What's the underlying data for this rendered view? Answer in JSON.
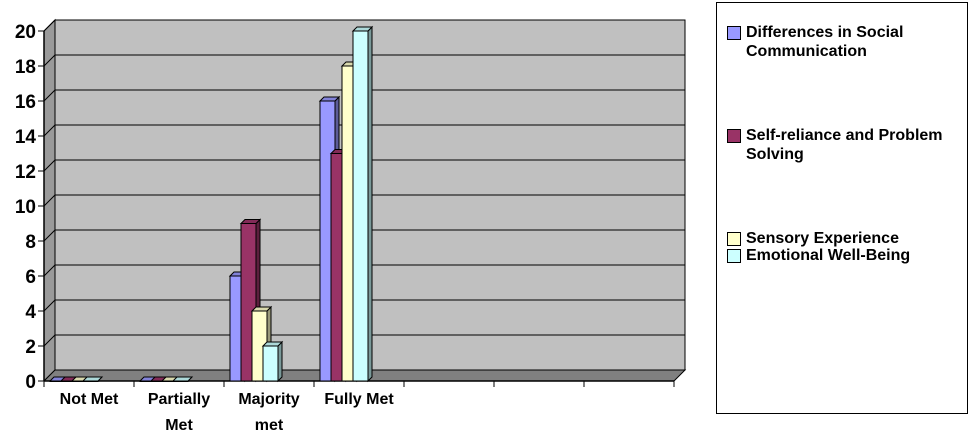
{
  "chart_data": {
    "type": "bar",
    "categories": [
      "Not Met",
      "Partially Met",
      "Majority met",
      "Fully Met",
      "",
      "",
      ""
    ],
    "series": [
      {
        "name": "Differences in Social Communication",
        "values": [
          0,
          0,
          6,
          16,
          0,
          0,
          0
        ],
        "color": "#9999ff"
      },
      {
        "name": "Self-reliance and Problem Solving",
        "values": [
          0,
          0,
          9,
          13,
          0,
          0,
          0
        ],
        "color": "#993366"
      },
      {
        "name": "Sensory Experience",
        "values": [
          0,
          0,
          4,
          18,
          0,
          0,
          0
        ],
        "color": "#ffffcc"
      },
      {
        "name": "Emotional Well-Being",
        "values": [
          0,
          0,
          2,
          20,
          0,
          0,
          0
        ],
        "color": "#ccffff"
      }
    ],
    "ylim": [
      0,
      20
    ],
    "yticks": [
      "0",
      "2",
      "4",
      "6",
      "8",
      "10",
      "12",
      "14",
      "16",
      "18",
      "20"
    ],
    "grid": true,
    "legend_position": "right",
    "plot_background": "#c0c0c0"
  }
}
